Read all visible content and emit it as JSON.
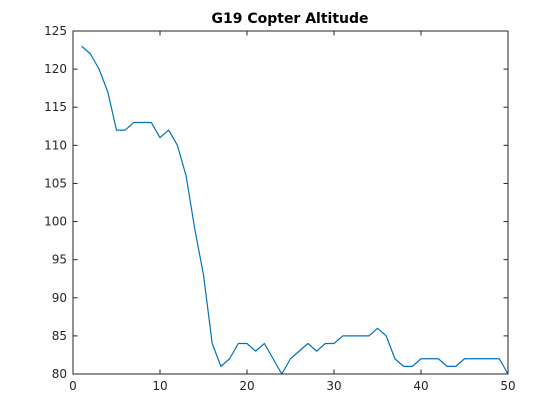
{
  "colors": {
    "series": "#0072bd",
    "axis": "#262626",
    "background": "#ffffff"
  },
  "chart_data": {
    "type": "line",
    "title": "G19 Copter Altitude",
    "xlabel": "",
    "ylabel": "",
    "xlim": [
      0,
      50
    ],
    "ylim": [
      80,
      125
    ],
    "xticks": [
      0,
      10,
      20,
      30,
      40,
      50
    ],
    "yticks": [
      80,
      85,
      90,
      95,
      100,
      105,
      110,
      115,
      120,
      125
    ],
    "xtick_labels": [
      "0",
      "10",
      "20",
      "30",
      "40",
      "50"
    ],
    "ytick_labels": [
      "80",
      "85",
      "90",
      "95",
      "100",
      "105",
      "110",
      "115",
      "120",
      "125"
    ],
    "grid": false,
    "legend": "none",
    "series": [
      {
        "x": [
          1,
          2,
          3,
          4,
          5,
          6,
          7,
          8,
          9,
          10,
          11,
          12,
          13,
          14,
          15,
          16,
          17,
          18,
          19,
          20,
          21,
          22,
          23,
          24,
          25,
          26,
          27,
          28,
          29,
          30,
          31,
          32,
          33,
          34,
          35,
          36,
          37,
          38,
          39,
          40,
          41,
          42,
          43,
          44,
          45,
          46,
          47,
          48,
          49,
          50
        ],
        "values": [
          123,
          122,
          120,
          117,
          112,
          112,
          113,
          113,
          113,
          111,
          112,
          110,
          106,
          99,
          93,
          84,
          81,
          82,
          84,
          84,
          83,
          84,
          82,
          80,
          82,
          83,
          84,
          83,
          84,
          84,
          85,
          85,
          85,
          85,
          86,
          85,
          82,
          81,
          81,
          82,
          82,
          82,
          81,
          81,
          82,
          82,
          82,
          82,
          82,
          80
        ]
      }
    ]
  }
}
